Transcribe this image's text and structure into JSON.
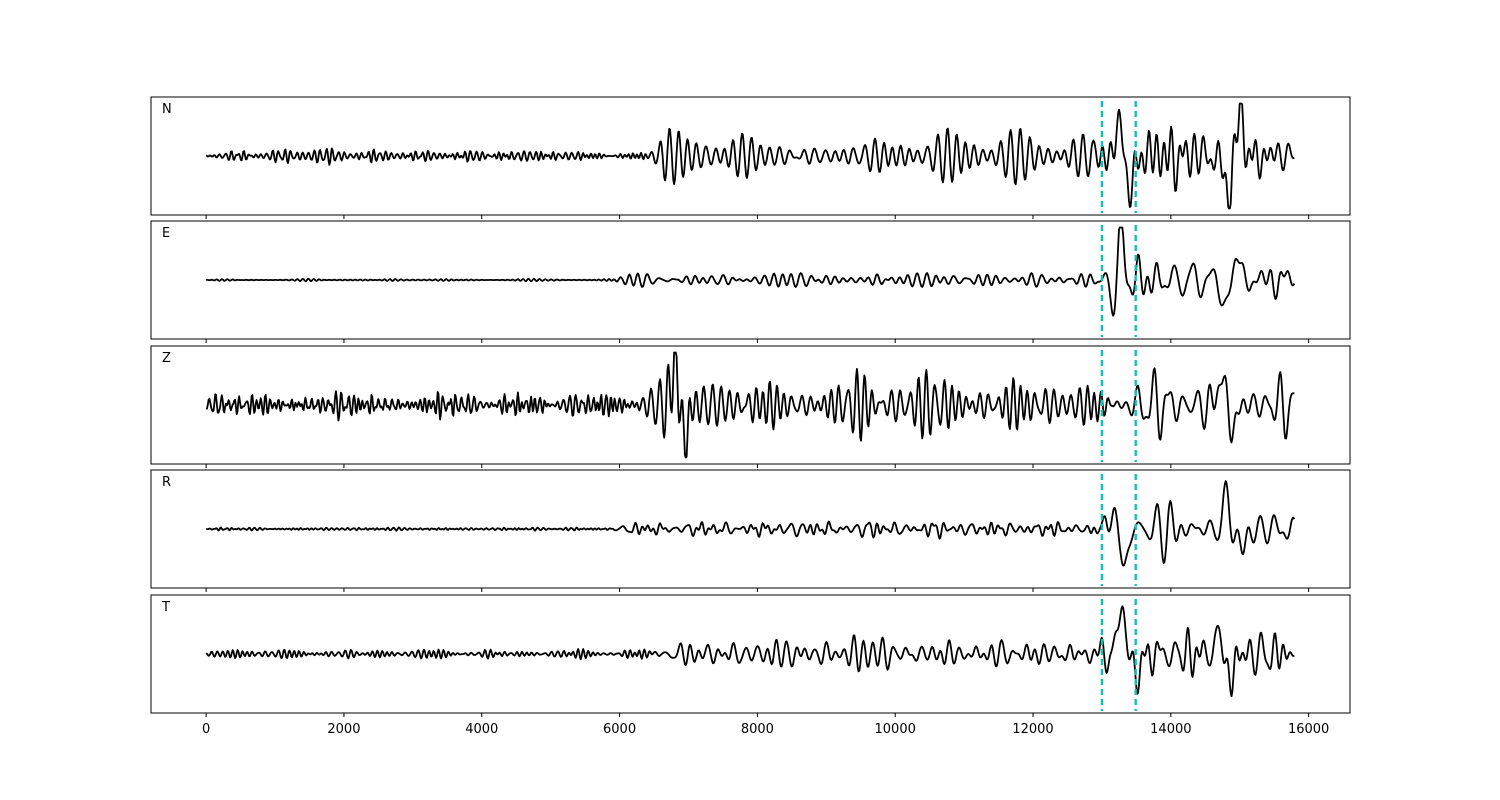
{
  "chart_data": {
    "type": "line",
    "title": "",
    "xlabel": "",
    "ylabel": "",
    "xlim": [
      -800,
      16600
    ],
    "x_ticks": [
      0,
      2000,
      4000,
      6000,
      8000,
      10000,
      12000,
      14000,
      16000
    ],
    "x_tick_labels": [
      "0",
      "2000",
      "4000",
      "6000",
      "8000",
      "10000",
      "12000",
      "14000",
      "16000"
    ],
    "sample_range": [
      0,
      15800
    ],
    "grid": false,
    "legend": "none",
    "trace_color": "#000000",
    "pick_color": "#17bfae",
    "picks": [
      13000,
      13490
    ],
    "panels": [
      {
        "label": "N",
        "segments": [
          {
            "x0": 0,
            "x1": 6500,
            "amp": 0.12,
            "period": 70
          },
          {
            "x0": 6500,
            "x1": 13000,
            "amp": 0.45,
            "period": 150
          },
          {
            "x0": 13000,
            "x1": 15800,
            "amp": 0.6,
            "period": 170
          }
        ],
        "events": [
          {
            "x": 13270,
            "amp": 0.7
          },
          {
            "x": 13400,
            "amp": -0.8
          },
          {
            "x": 14830,
            "amp": -0.85
          },
          {
            "x": 15010,
            "amp": 0.85
          }
        ]
      },
      {
        "label": "E",
        "segments": [
          {
            "x0": 0,
            "x1": 6000,
            "amp": 0.02,
            "period": 60
          },
          {
            "x0": 6000,
            "x1": 13000,
            "amp": 0.14,
            "period": 140
          },
          {
            "x0": 13000,
            "x1": 15800,
            "amp": 0.4,
            "period": 180
          }
        ],
        "events": [
          {
            "x": 13170,
            "amp": -0.5
          },
          {
            "x": 13270,
            "amp": 1.0
          },
          {
            "x": 14790,
            "amp": -0.6
          },
          {
            "x": 14950,
            "amp": 0.5
          }
        ]
      },
      {
        "label": "Z",
        "segments": [
          {
            "x0": 0,
            "x1": 6300,
            "amp": 0.22,
            "period": 70
          },
          {
            "x0": 6300,
            "x1": 13000,
            "amp": 0.6,
            "period": 130
          },
          {
            "x0": 13000,
            "x1": 15800,
            "amp": 0.6,
            "period": 160
          }
        ],
        "events": [
          {
            "x": 6800,
            "amp": 0.85
          },
          {
            "x": 6950,
            "amp": -0.7
          },
          {
            "x": 14750,
            "amp": 0.75
          },
          {
            "x": 14880,
            "amp": -0.65
          }
        ]
      },
      {
        "label": "R",
        "segments": [
          {
            "x0": 0,
            "x1": 6000,
            "amp": 0.03,
            "period": 60
          },
          {
            "x0": 6000,
            "x1": 13000,
            "amp": 0.16,
            "period": 140
          },
          {
            "x0": 13000,
            "x1": 15800,
            "amp": 0.45,
            "period": 190
          }
        ],
        "events": [
          {
            "x": 13180,
            "amp": 0.55
          },
          {
            "x": 13310,
            "amp": -1.0
          },
          {
            "x": 14800,
            "amp": 0.6
          },
          {
            "x": 15050,
            "amp": -0.5
          }
        ]
      },
      {
        "label": "T",
        "segments": [
          {
            "x0": 0,
            "x1": 6500,
            "amp": 0.08,
            "period": 70
          },
          {
            "x0": 6500,
            "x1": 13000,
            "amp": 0.3,
            "period": 140
          },
          {
            "x0": 13000,
            "x1": 15800,
            "amp": 0.45,
            "period": 170
          }
        ],
        "events": [
          {
            "x": 13280,
            "amp": 1.0
          },
          {
            "x": 13520,
            "amp": -0.5
          },
          {
            "x": 14870,
            "amp": -0.55
          },
          {
            "x": 14680,
            "amp": 0.4
          }
        ]
      }
    ]
  }
}
